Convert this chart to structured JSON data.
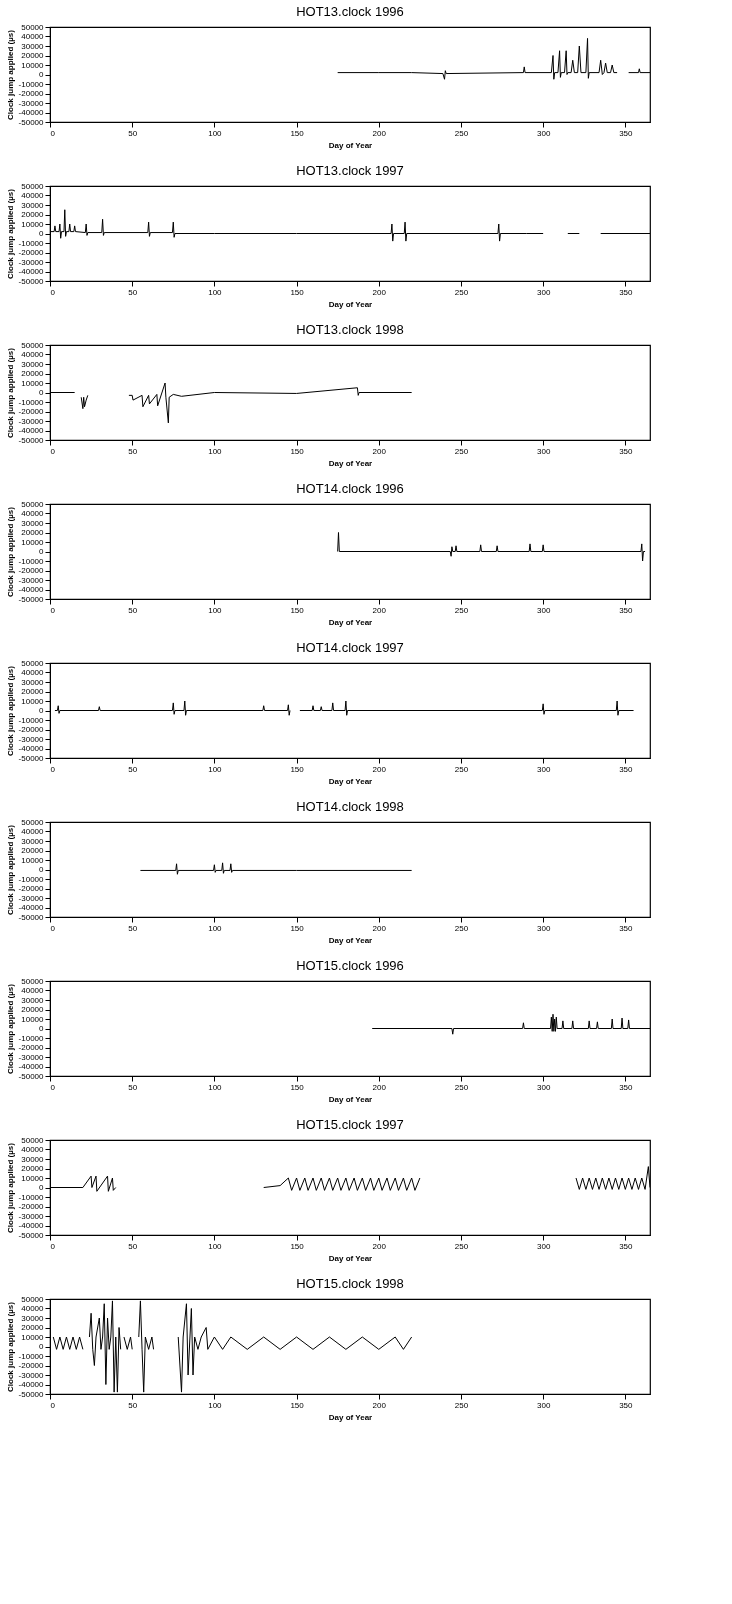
{
  "chart_data": [
    {
      "type": "line",
      "title": "HOT13.clock 1996",
      "xlabel": "Day of Year",
      "ylabel": "Clock jump applied (µs)",
      "color": "#000000",
      "grid": false,
      "xlim": [
        0,
        365
      ],
      "ylim": [
        -50000,
        50000
      ],
      "xticks": [
        0,
        50,
        100,
        150,
        200,
        250,
        300,
        350
      ],
      "yticks": [
        -50000,
        -40000,
        -30000,
        -20000,
        -10000,
        0,
        10000,
        20000,
        30000,
        40000,
        50000
      ],
      "x": [
        175,
        200,
        220,
        239,
        240,
        240.5,
        241,
        288,
        288.5,
        289,
        305,
        306,
        306.5,
        307,
        309,
        310,
        310.5,
        311,
        313,
        314,
        314.5,
        315,
        317,
        318,
        319,
        321,
        322,
        323,
        326,
        327,
        327.5,
        328,
        334,
        335,
        336,
        337,
        338,
        339,
        341,
        342,
        343,
        345,
        346,
        352,
        358,
        358.5,
        359,
        365
      ],
      "values": [
        2000,
        2000,
        2000,
        1000,
        -5000,
        4000,
        1000,
        2000,
        8000,
        2000,
        2000,
        20000,
        -5000,
        2000,
        2000,
        25000,
        -3000,
        2000,
        2000,
        25000,
        0,
        2000,
        2000,
        15000,
        2000,
        2000,
        30000,
        2000,
        2000,
        38000,
        -4000,
        2000,
        2000,
        15000,
        0,
        2000,
        12000,
        2000,
        2000,
        10000,
        2000,
        2000,
        null,
        2000,
        2000,
        6000,
        2000,
        2000
      ]
    },
    {
      "type": "line",
      "title": "HOT13.clock 1997",
      "xlabel": "Day of Year",
      "ylabel": "Clock jump applied (µs)",
      "color": "#000000",
      "grid": false,
      "xlim": [
        0,
        365
      ],
      "ylim": [
        -50000,
        50000
      ],
      "xticks": [
        0,
        50,
        100,
        150,
        200,
        250,
        300,
        350
      ],
      "yticks": [
        -50000,
        -40000,
        -30000,
        -20000,
        -10000,
        0,
        10000,
        20000,
        30000,
        40000,
        50000
      ],
      "x": [
        0,
        2.5,
        3,
        3.5,
        5.5,
        6,
        6.5,
        7,
        8.5,
        9,
        9.5,
        10,
        11.5,
        12,
        12.5,
        14.5,
        15,
        15.5,
        21.5,
        22,
        22.5,
        23,
        31.5,
        32,
        32.5,
        33,
        59.5,
        60,
        60.5,
        61,
        74.5,
        75,
        75.5,
        76,
        100,
        150,
        207.5,
        208,
        208.5,
        209,
        215.5,
        216,
        216.5,
        217,
        272.5,
        273,
        273.5,
        274,
        290,
        300,
        305,
        315,
        322,
        328,
        335,
        365
      ],
      "values": [
        2000,
        2000,
        8000,
        2000,
        2000,
        10000,
        -5000,
        2000,
        2000,
        25000,
        -3000,
        2000,
        2000,
        10000,
        2000,
        2000,
        8000,
        2000,
        1000,
        10000,
        -2000,
        1000,
        1000,
        15000,
        -2000,
        1000,
        1000,
        12000,
        -3000,
        1000,
        1000,
        12000,
        -4000,
        0,
        0,
        0,
        0,
        10000,
        -8000,
        0,
        0,
        12000,
        -8000,
        0,
        0,
        10000,
        -8000,
        0,
        0,
        0,
        null,
        0,
        0,
        null,
        0,
        0
      ]
    },
    {
      "type": "line",
      "title": "HOT13.clock 1998",
      "xlabel": "Day of Year",
      "ylabel": "Clock jump applied (µs)",
      "color": "#000000",
      "grid": false,
      "xlim": [
        0,
        365
      ],
      "ylim": [
        -50000,
        50000
      ],
      "xticks": [
        0,
        50,
        100,
        150,
        200,
        250,
        300,
        350
      ],
      "yticks": [
        -50000,
        -40000,
        -30000,
        -20000,
        -10000,
        0,
        10000,
        20000,
        30000,
        40000,
        50000
      ],
      "x": [
        0,
        15,
        16,
        19,
        20,
        20.5,
        21,
        22,
        23,
        24,
        48,
        50,
        50.5,
        56,
        56.5,
        60,
        60.5,
        65,
        65.5,
        70,
        70.5,
        72,
        72.5,
        75,
        80,
        100,
        150,
        187,
        187.5,
        188,
        220
      ],
      "values": [
        0,
        0,
        null,
        -5000,
        -17000,
        -5000,
        -15000,
        -8000,
        -3000,
        null,
        -3000,
        -3000,
        -8000,
        -3000,
        -15000,
        -3000,
        -12000,
        -2000,
        -14000,
        10000,
        -5000,
        -32000,
        -5000,
        -2000,
        -4000,
        0,
        -1000,
        5000,
        -3000,
        0,
        0
      ]
    },
    {
      "type": "line",
      "title": "HOT14.clock 1996",
      "xlabel": "Day of Year",
      "ylabel": "Clock jump applied (µs)",
      "color": "#000000",
      "grid": false,
      "xlim": [
        0,
        365
      ],
      "ylim": [
        -50000,
        50000
      ],
      "xticks": [
        0,
        50,
        100,
        150,
        200,
        250,
        300,
        350
      ],
      "yticks": [
        -50000,
        -40000,
        -30000,
        -20000,
        -10000,
        0,
        10000,
        20000,
        30000,
        40000,
        50000
      ],
      "x": [
        175,
        175.5,
        176,
        243.5,
        244,
        244.5,
        245,
        246.5,
        247,
        247.5,
        261.5,
        262,
        262.5,
        271.5,
        272,
        272.5,
        291.5,
        292,
        292.5,
        299.5,
        300,
        300.5,
        359.5,
        360,
        360.5,
        361,
        362
      ],
      "values": [
        0,
        20000,
        0,
        0,
        -5000,
        5000,
        0,
        0,
        6000,
        0,
        0,
        7000,
        0,
        0,
        6000,
        0,
        0,
        8000,
        0,
        0,
        7000,
        0,
        0,
        8000,
        -10000,
        0,
        0
      ]
    },
    {
      "type": "line",
      "title": "HOT14.clock 1997",
      "xlabel": "Day of Year",
      "ylabel": "Clock jump applied (µs)",
      "color": "#000000",
      "grid": false,
      "xlim": [
        0,
        365
      ],
      "ylim": [
        -50000,
        50000
      ],
      "xticks": [
        0,
        50,
        100,
        150,
        200,
        250,
        300,
        350
      ],
      "yticks": [
        -50000,
        -40000,
        -30000,
        -20000,
        -10000,
        0,
        10000,
        20000,
        30000,
        40000,
        50000
      ],
      "x": [
        3,
        4.5,
        5,
        5.5,
        6,
        29.5,
        30,
        30.5,
        74.5,
        75,
        75.5,
        76,
        81.5,
        82,
        82.5,
        83,
        129.5,
        130,
        130.5,
        144.5,
        145,
        145.5,
        146,
        148,
        152,
        159.5,
        160,
        160.5,
        164.5,
        165,
        165.5,
        171.5,
        172,
        172.5,
        179.5,
        180,
        180.5,
        181,
        299.5,
        300,
        300.5,
        301,
        344.5,
        345,
        345.5,
        346,
        355
      ],
      "values": [
        0,
        0,
        5000,
        -3000,
        0,
        0,
        4000,
        0,
        0,
        8000,
        -4000,
        0,
        0,
        10000,
        -5000,
        0,
        0,
        5000,
        0,
        0,
        6000,
        -5000,
        0,
        null,
        0,
        0,
        5000,
        0,
        0,
        4000,
        0,
        0,
        8000,
        0,
        0,
        10000,
        -5000,
        0,
        0,
        7000,
        -4000,
        0,
        0,
        10000,
        -5000,
        0,
        0
      ]
    },
    {
      "type": "line",
      "title": "HOT14.clock 1998",
      "xlabel": "Day of Year",
      "ylabel": "Clock jump applied (µs)",
      "color": "#000000",
      "grid": false,
      "xlim": [
        0,
        365
      ],
      "ylim": [
        -50000,
        50000
      ],
      "xticks": [
        0,
        50,
        100,
        150,
        200,
        250,
        300,
        350
      ],
      "yticks": [
        -50000,
        -40000,
        -30000,
        -20000,
        -10000,
        0,
        10000,
        20000,
        30000,
        40000,
        50000
      ],
      "x": [
        55,
        76.5,
        77,
        77.5,
        78,
        99.5,
        100,
        100.5,
        101,
        104.5,
        105,
        105.5,
        106,
        109.5,
        110,
        110.5,
        111,
        150,
        220
      ],
      "values": [
        -1000,
        -1000,
        6000,
        -5000,
        -1000,
        -1000,
        5000,
        -3000,
        -1000,
        -1000,
        7000,
        -4000,
        -1000,
        -1000,
        6000,
        -3000,
        -1000,
        -1000,
        -1000
      ]
    },
    {
      "type": "line",
      "title": "HOT15.clock 1996",
      "xlabel": "Day of Year",
      "ylabel": "Clock jump applied (µs)",
      "color": "#000000",
      "grid": false,
      "xlim": [
        0,
        365
      ],
      "ylim": [
        -50000,
        50000
      ],
      "xticks": [
        0,
        50,
        100,
        150,
        200,
        250,
        300,
        350
      ],
      "yticks": [
        -50000,
        -40000,
        -30000,
        -20000,
        -10000,
        0,
        10000,
        20000,
        30000,
        40000,
        50000
      ],
      "x": [
        196,
        244.5,
        245,
        245.5,
        287.5,
        288,
        288.5,
        304.5,
        305,
        305.5,
        306,
        306.5,
        307,
        307.5,
        308,
        308.5,
        311.5,
        312,
        312.5,
        317.5,
        318,
        318.5,
        327.5,
        328,
        328.5,
        332.5,
        333,
        333.5,
        341.5,
        342,
        342.5,
        347.5,
        348,
        348.5,
        351.5,
        352,
        352.5,
        365
      ],
      "values": [
        0,
        0,
        -6000,
        0,
        0,
        6000,
        0,
        0,
        12000,
        -3000,
        15000,
        -3000,
        10000,
        -3000,
        12000,
        0,
        0,
        8000,
        0,
        0,
        8000,
        0,
        0,
        8000,
        0,
        0,
        7000,
        0,
        0,
        10000,
        0,
        0,
        11000,
        0,
        0,
        9000,
        0,
        0
      ]
    },
    {
      "type": "line",
      "title": "HOT15.clock 1997",
      "xlabel": "Day of Year",
      "ylabel": "Clock jump applied (µs)",
      "color": "#000000",
      "grid": false,
      "xlim": [
        0,
        365
      ],
      "ylim": [
        -50000,
        50000
      ],
      "xticks": [
        0,
        50,
        100,
        150,
        200,
        250,
        300,
        350
      ],
      "yticks": [
        -50000,
        -40000,
        -30000,
        -20000,
        -10000,
        0,
        10000,
        20000,
        30000,
        40000,
        50000
      ],
      "x": [
        0,
        20,
        25,
        25.5,
        28,
        28.5,
        35,
        35.5,
        38,
        38.5,
        40,
        45,
        130,
        140,
        145,
        147,
        150,
        152,
        155,
        157,
        160,
        162,
        165,
        167,
        170,
        172,
        175,
        177,
        180,
        182,
        185,
        187,
        190,
        192,
        195,
        197,
        200,
        202,
        205,
        207,
        210,
        212,
        215,
        217,
        220,
        222,
        225,
        230,
        320,
        322,
        324,
        326,
        328,
        330,
        332,
        334,
        336,
        338,
        340,
        342,
        344,
        346,
        348,
        350,
        352,
        354,
        356,
        358,
        360,
        362,
        364,
        365
      ],
      "values": [
        0,
        0,
        12000,
        0,
        12000,
        -4000,
        12000,
        -4000,
        10000,
        -3000,
        0,
        null,
        0,
        2000,
        10000,
        -3000,
        10000,
        -3000,
        10000,
        -3000,
        10000,
        -3000,
        10000,
        -3000,
        10000,
        -3000,
        10000,
        -3000,
        10000,
        -3000,
        10000,
        -3000,
        10000,
        -3000,
        10000,
        -3000,
        10000,
        -3000,
        10000,
        -3000,
        10000,
        -3000,
        10000,
        -3000,
        10000,
        -3000,
        10000,
        null,
        10000,
        -2000,
        10000,
        -2000,
        10000,
        -2000,
        10000,
        -2000,
        10000,
        -2000,
        10000,
        -2000,
        10000,
        -2000,
        10000,
        -2000,
        10000,
        -2000,
        10000,
        -2000,
        10000,
        -2000,
        22000,
        0
      ]
    },
    {
      "type": "line",
      "title": "HOT15.clock 1998",
      "xlabel": "Day of Year",
      "ylabel": "Clock jump applied (µs)",
      "color": "#000000",
      "grid": false,
      "xlim": [
        0,
        365
      ],
      "ylim": [
        -50000,
        50000
      ],
      "xticks": [
        0,
        50,
        100,
        150,
        200,
        250,
        300,
        350
      ],
      "yticks": [
        -50000,
        -40000,
        -30000,
        -20000,
        -10000,
        0,
        10000,
        20000,
        30000,
        40000,
        50000
      ],
      "x": [
        2,
        4,
        6,
        8,
        10,
        12,
        14,
        16,
        18,
        20,
        22,
        24,
        25,
        26,
        27,
        28,
        30,
        31,
        32,
        33,
        34,
        35,
        36,
        37,
        38,
        39,
        40,
        41,
        42,
        43,
        44,
        45,
        47,
        49,
        50,
        52,
        54,
        55,
        56,
        57,
        58,
        60,
        62,
        63,
        66,
        78,
        80,
        81,
        83,
        84,
        86,
        87,
        88,
        90,
        92,
        95,
        96,
        100,
        105,
        110,
        120,
        130,
        140,
        150,
        160,
        170,
        180,
        190,
        200,
        210,
        215,
        220
      ],
      "values": [
        10000,
        -3000,
        10000,
        -3000,
        10000,
        -3000,
        10000,
        -3000,
        10000,
        -3000,
        null,
        10000,
        35000,
        -3000,
        -20000,
        10000,
        30000,
        -3000,
        10000,
        45000,
        -40000,
        30000,
        -3000,
        10000,
        48000,
        -48000,
        10000,
        -48000,
        20000,
        -3000,
        null,
        10000,
        -3000,
        10000,
        -3000,
        null,
        10000,
        48000,
        -3000,
        -48000,
        10000,
        -3000,
        10000,
        -3000,
        null,
        10000,
        -48000,
        10000,
        45000,
        -30000,
        40000,
        -30000,
        10000,
        -3000,
        10000,
        20000,
        -3000,
        10000,
        -3000,
        10000,
        -3000,
        10000,
        -3000,
        10000,
        -3000,
        10000,
        -3000,
        10000,
        -3000,
        10000,
        -3000,
        10000
      ]
    }
  ]
}
